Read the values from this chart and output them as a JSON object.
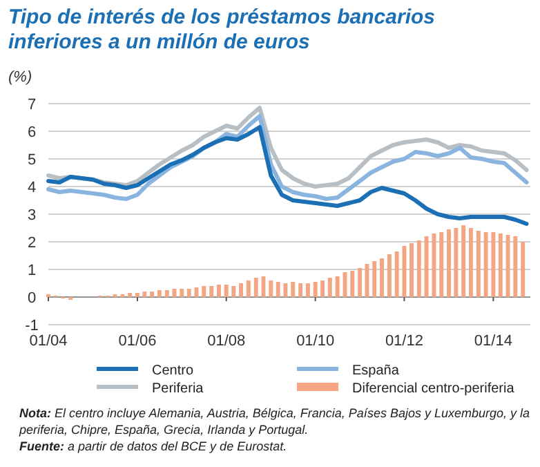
{
  "chart_data": {
    "type": "line",
    "title": "Tipo de interés de los préstamos bancarios inferiores a un millón de euros",
    "ylabel": "(%)",
    "x": [
      "2004-01",
      "2004-04",
      "2004-07",
      "2004-10",
      "2005-01",
      "2005-04",
      "2005-07",
      "2005-10",
      "2006-01",
      "2006-04",
      "2006-07",
      "2006-10",
      "2007-01",
      "2007-04",
      "2007-07",
      "2007-10",
      "2008-01",
      "2008-04",
      "2008-07",
      "2008-10",
      "2009-01",
      "2009-04",
      "2009-07",
      "2009-10",
      "2010-01",
      "2010-04",
      "2010-07",
      "2010-10",
      "2011-01",
      "2011-04",
      "2011-07",
      "2011-10",
      "2012-01",
      "2012-04",
      "2012-07",
      "2012-10",
      "2013-01",
      "2013-04",
      "2013-07",
      "2013-10",
      "2014-01",
      "2014-04",
      "2014-07",
      "2014-10"
    ],
    "series": [
      {
        "name": "Diferencial centro-periferia",
        "type": "bar",
        "color": "#f4a582",
        "x": [
          "2004-01",
          "2004-03",
          "2004-05",
          "2004-07",
          "2004-09",
          "2004-11",
          "2005-01",
          "2005-03",
          "2005-05",
          "2005-07",
          "2005-09",
          "2005-11",
          "2006-01",
          "2006-03",
          "2006-05",
          "2006-07",
          "2006-09",
          "2006-11",
          "2007-01",
          "2007-03",
          "2007-05",
          "2007-07",
          "2007-09",
          "2007-11",
          "2008-01",
          "2008-03",
          "2008-05",
          "2008-07",
          "2008-09",
          "2008-11",
          "2009-01",
          "2009-03",
          "2009-05",
          "2009-07",
          "2009-09",
          "2009-11",
          "2010-01",
          "2010-03",
          "2010-05",
          "2010-07",
          "2010-09",
          "2010-11",
          "2011-01",
          "2011-03",
          "2011-05",
          "2011-07",
          "2011-09",
          "2011-11",
          "2012-01",
          "2012-03",
          "2012-05",
          "2012-07",
          "2012-09",
          "2012-11",
          "2013-01",
          "2013-03",
          "2013-05",
          "2013-07",
          "2013-09",
          "2013-11",
          "2014-01",
          "2014-03",
          "2014-05",
          "2014-07",
          "2014-09"
        ],
        "values": [
          0.1,
          0.05,
          -0.05,
          -0.1,
          0.0,
          0.0,
          0.0,
          0.05,
          0.05,
          0.1,
          0.1,
          0.15,
          0.15,
          0.2,
          0.2,
          0.25,
          0.25,
          0.3,
          0.3,
          0.3,
          0.35,
          0.4,
          0.4,
          0.45,
          0.45,
          0.4,
          0.5,
          0.6,
          0.7,
          0.75,
          0.6,
          0.55,
          0.5,
          0.55,
          0.5,
          0.5,
          0.55,
          0.6,
          0.7,
          0.75,
          0.9,
          0.95,
          1.05,
          1.2,
          1.3,
          1.4,
          1.55,
          1.65,
          1.85,
          1.95,
          2.05,
          2.2,
          2.3,
          2.35,
          2.45,
          2.5,
          2.6,
          2.5,
          2.4,
          2.35,
          2.35,
          2.3,
          2.25,
          2.2,
          2.0
        ]
      },
      {
        "name": "Periferia",
        "color": "#b7bfc4",
        "values": [
          4.4,
          4.3,
          4.35,
          4.3,
          4.25,
          4.15,
          4.1,
          4.05,
          4.2,
          4.5,
          4.8,
          5.05,
          5.3,
          5.5,
          5.8,
          6.0,
          6.2,
          6.1,
          6.5,
          6.85,
          5.4,
          4.6,
          4.3,
          4.1,
          4.0,
          4.05,
          4.1,
          4.3,
          4.7,
          5.1,
          5.3,
          5.5,
          5.6,
          5.65,
          5.7,
          5.6,
          5.4,
          5.5,
          5.45,
          5.3,
          5.25,
          5.2,
          4.95,
          4.6
        ]
      },
      {
        "name": "España",
        "color": "#8ab4e0",
        "values": [
          3.9,
          3.8,
          3.85,
          3.8,
          3.75,
          3.7,
          3.6,
          3.55,
          3.7,
          4.1,
          4.4,
          4.7,
          4.9,
          5.1,
          5.4,
          5.6,
          5.9,
          5.8,
          6.2,
          6.55,
          4.8,
          4.0,
          3.8,
          3.7,
          3.65,
          3.55,
          3.6,
          3.9,
          4.2,
          4.5,
          4.7,
          4.9,
          5.0,
          5.25,
          5.2,
          5.1,
          5.2,
          5.4,
          5.05,
          5.0,
          4.9,
          4.85,
          4.5,
          4.15
        ]
      },
      {
        "name": "Centro",
        "color": "#1a6fb5",
        "values": [
          4.2,
          4.15,
          4.35,
          4.3,
          4.25,
          4.1,
          4.05,
          3.95,
          4.05,
          4.3,
          4.55,
          4.8,
          4.95,
          5.15,
          5.4,
          5.6,
          5.75,
          5.7,
          5.9,
          6.15,
          4.4,
          3.7,
          3.5,
          3.45,
          3.4,
          3.35,
          3.3,
          3.4,
          3.5,
          3.8,
          3.95,
          3.85,
          3.75,
          3.5,
          3.2,
          3.0,
          2.9,
          2.85,
          2.9,
          2.9,
          2.9,
          2.9,
          2.8,
          2.65
        ]
      }
    ],
    "xlim": [
      "2004-01",
      "2014-11"
    ],
    "xticks": [
      {
        "value": "2004-01",
        "label": "01/04"
      },
      {
        "value": "2006-01",
        "label": "01/06"
      },
      {
        "value": "2008-01",
        "label": "01/08"
      },
      {
        "value": "2010-01",
        "label": "01/10"
      },
      {
        "value": "2012-01",
        "label": "01/12"
      },
      {
        "value": "2014-01",
        "label": "01/14"
      }
    ],
    "ylim": [
      -1,
      7
    ],
    "yticks": [
      -1,
      0,
      1,
      2,
      3,
      4,
      5,
      6,
      7
    ],
    "grid": "y",
    "legend": "bottom",
    "annotations": [
      "Nota: El centro incluye Alemania, Austria, Bélgica, Francia, Países Bajos y Luxemburgo, y la periferia, Chipre, España, Grecia, Irlanda y Portugal.",
      "Fuente: a partir de datos del BCE y de Eurostat."
    ]
  }
}
